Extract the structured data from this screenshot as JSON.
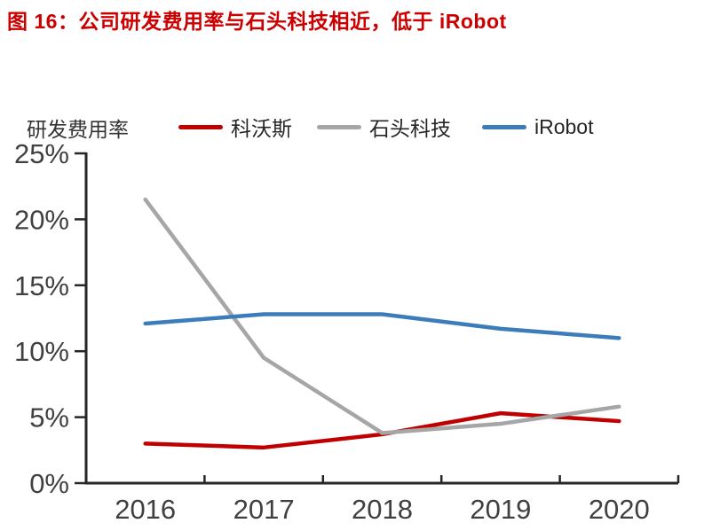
{
  "title": {
    "text": "图 16：公司研发费用率与石头科技相近，低于 iRobot"
  },
  "chart_data": {
    "type": "line",
    "y_axis_title": "研发费用率",
    "categories": [
      "2016",
      "2017",
      "2018",
      "2019",
      "2020"
    ],
    "series": [
      {
        "name": "科沃斯",
        "color": "#c00000",
        "values": [
          3.0,
          2.7,
          3.7,
          5.3,
          4.7
        ]
      },
      {
        "name": "石头科技",
        "color": "#a6a6a6",
        "values": [
          21.5,
          9.5,
          3.8,
          4.5,
          5.8
        ]
      },
      {
        "name": "iRobot",
        "color": "#3b7cba",
        "values": [
          12.1,
          12.8,
          12.8,
          11.7,
          11.0
        ]
      }
    ],
    "ylim": [
      0,
      25
    ],
    "yticks": [
      0,
      5,
      10,
      15,
      20,
      25
    ],
    "ytick_suffix": "%",
    "legend_position": "top",
    "grid": false,
    "axis_color": "#262626",
    "label_color": "#404040",
    "title_color": "#cc0000"
  }
}
